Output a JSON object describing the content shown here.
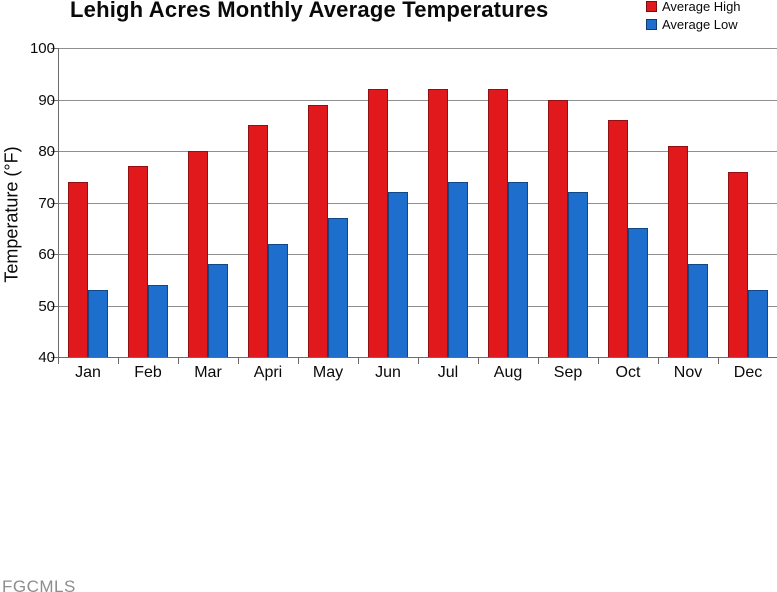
{
  "chart_data": {
    "type": "bar",
    "title": "Lehigh Acres Monthly Average Temperatures",
    "categories": [
      "Jan",
      "Feb",
      "Mar",
      "Apri",
      "May",
      "Jun",
      "Jul",
      "Aug",
      "Sep",
      "Oct",
      "Nov",
      "Dec"
    ],
    "series": [
      {
        "name": "Average High",
        "color": "#e2191c",
        "values": [
          74,
          77,
          80,
          85,
          89,
          92,
          92,
          92,
          90,
          86,
          81,
          76
        ]
      },
      {
        "name": "Average Low",
        "color": "#1d6ecd",
        "values": [
          53,
          54,
          58,
          62,
          67,
          72,
          74,
          74,
          72,
          65,
          58,
          53
        ]
      }
    ],
    "xlabel": "",
    "ylabel": "Temperature (°F)",
    "ylim": [
      40,
      100
    ],
    "yticks": [
      40,
      50,
      60,
      70,
      80,
      90,
      100
    ],
    "grid": true,
    "legend_position": "top-right"
  },
  "footer": {
    "watermark": "FGCMLS"
  }
}
